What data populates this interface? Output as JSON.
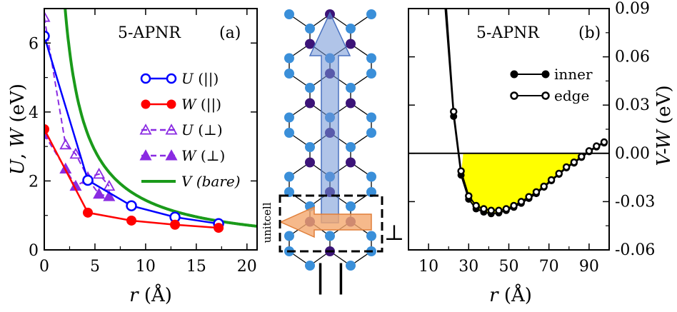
{
  "chart_data": [
    {
      "id": "a",
      "type": "line",
      "title": "5-APNR",
      "panel_label": "(a)",
      "xlabel": "r (Å)",
      "xlabel_var": "r",
      "xlabel_unit": "(Å)",
      "ylabel": "U, W (eV)",
      "ylabel_var1": "U",
      "ylabel_var2": "W",
      "ylabel_unit": "(eV)",
      "xlim": [
        0,
        21
      ],
      "ylim": [
        0,
        7
      ],
      "xticks": [
        0,
        5,
        10,
        15,
        20
      ],
      "yticks": [
        0,
        2,
        4,
        6
      ],
      "series": [
        {
          "name": "U (||)",
          "name_var": "U",
          "name_sub": "(||)",
          "color": "#0000ff",
          "marker": "open-circle",
          "dashed": false,
          "x": [
            0,
            4.3,
            8.6,
            12.9,
            17.2
          ],
          "y": [
            6.2,
            2.02,
            1.28,
            0.95,
            0.76
          ]
        },
        {
          "name": "W (||)",
          "name_var": "W",
          "name_sub": "(||)",
          "color": "#ff0000",
          "marker": "filled-circle",
          "dashed": false,
          "x": [
            0,
            4.3,
            8.6,
            12.9,
            17.2
          ],
          "y": [
            3.5,
            1.08,
            0.85,
            0.73,
            0.64
          ]
        },
        {
          "name": "U (⊥)",
          "name_var": "U",
          "name_sub": "(⊥)",
          "color": "#8a2be2",
          "marker": "open-triangle",
          "dashed": true,
          "x": [
            0,
            2.1,
            3.1,
            4.3,
            5.4,
            6.4
          ],
          "y": [
            6.75,
            3.05,
            2.78,
            2.1,
            2.2,
            1.85
          ]
        },
        {
          "name": "W (⊥)",
          "name_var": "W",
          "name_sub": "(⊥)",
          "color": "#8a2be2",
          "marker": "filled-triangle",
          "dashed": true,
          "x": [
            0,
            2.1,
            3.1,
            4.3,
            5.4,
            6.4
          ],
          "y": [
            3.35,
            2.35,
            1.85,
            2.05,
            1.62,
            1.55
          ]
        },
        {
          "name": "V (bare)",
          "name_var": "V",
          "name_sub": "(bare)",
          "color": "#1a9a1a",
          "marker": "none",
          "dashed": false,
          "function": "14.4/r",
          "xrange": [
            2.0,
            21
          ]
        }
      ]
    },
    {
      "id": "b",
      "type": "line",
      "title": "5-APNR",
      "panel_label": "(b)",
      "xlabel": "r (Å)",
      "xlabel_var": "r",
      "xlabel_unit": "(Å)",
      "ylabel": "V-W (eV)",
      "ylabel_var": "V-W",
      "ylabel_unit": "(eV)",
      "xlim": [
        0,
        100
      ],
      "ylim": [
        -0.06,
        0.09
      ],
      "xticks": [
        10,
        30,
        50,
        70,
        90
      ],
      "yticks": [
        "0.09",
        "0.06",
        "0.03",
        "0.00",
        "-0.03",
        "-0.06"
      ],
      "fill_color": "#ffff00",
      "series": [
        {
          "name": "inner",
          "marker": "filled-circle",
          "x": [
            22.5,
            26.2,
            30.0,
            33.7,
            37.5,
            41.2,
            45.0,
            48.7,
            52.5,
            56.2,
            60.0,
            63.7,
            67.5,
            71.2,
            75.0,
            78.7,
            82.5,
            86.2,
            90.0,
            93.7,
            97.5
          ],
          "y": [
            0.023,
            -0.0135,
            -0.0285,
            -0.0345,
            -0.0365,
            -0.0375,
            -0.037,
            -0.0355,
            -0.0335,
            -0.031,
            -0.028,
            -0.025,
            -0.021,
            -0.017,
            -0.013,
            -0.009,
            -0.006,
            -0.0025,
            0.001,
            0.004,
            0.0065
          ]
        },
        {
          "name": "edge",
          "marker": "open-circle",
          "x": [
            22.5,
            26.2,
            30.0,
            33.7,
            37.5,
            41.2,
            45.0,
            48.7,
            52.5,
            56.2,
            60.0,
            63.7,
            67.5,
            71.2,
            75.0,
            78.7,
            82.5,
            86.2,
            90.0,
            93.7,
            97.5
          ],
          "y": [
            0.026,
            -0.011,
            -0.0265,
            -0.0325,
            -0.0345,
            -0.0355,
            -0.0355,
            -0.0345,
            -0.0325,
            -0.03,
            -0.027,
            -0.024,
            -0.0205,
            -0.0165,
            -0.0125,
            -0.0085,
            -0.0055,
            -0.002,
            0.0015,
            0.0045,
            0.007
          ]
        }
      ]
    }
  ],
  "middle_panel": {
    "parallel_symbol": "| |",
    "perp_symbol": "⊥",
    "unitcell_label": "unitcell",
    "colors": {
      "edge_atom": "#3a8fd9",
      "inner_atom": "#3c1478",
      "bond": "#000000",
      "arrow_parallel": "#6f94d6",
      "arrow_perp": "#f4a76e"
    }
  }
}
